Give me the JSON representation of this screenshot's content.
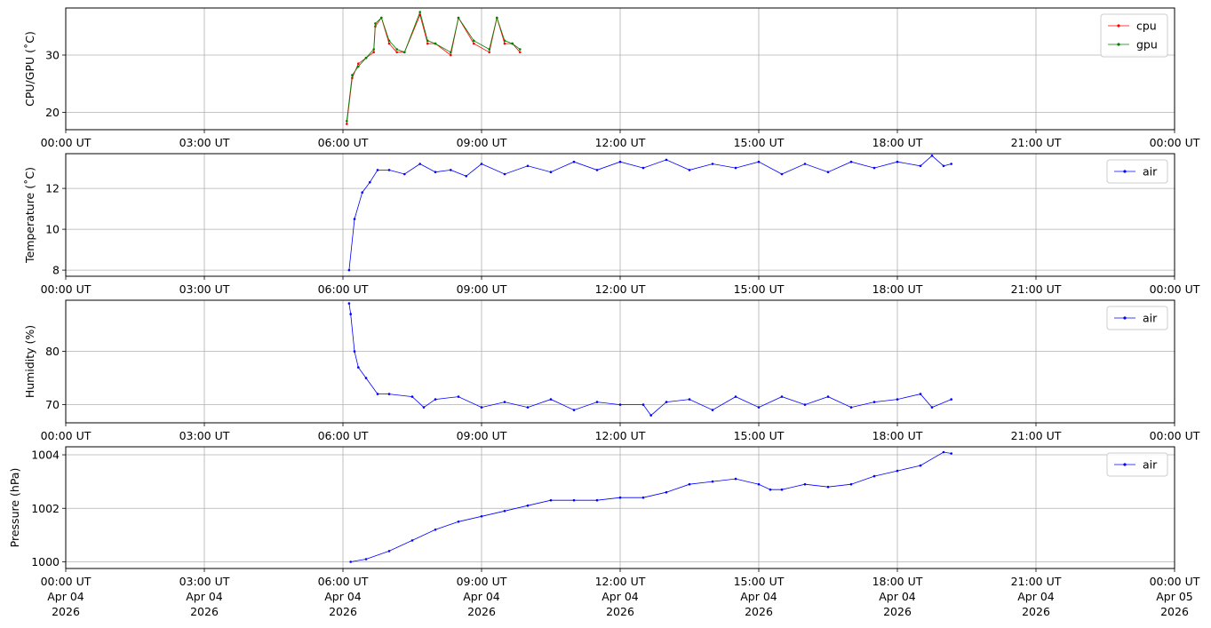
{
  "chart_data": [
    {
      "type": "line",
      "ylabel": "CPU/GPU (˚C)",
      "xlim": [
        "2026-04-04 00:00",
        "2026-04-05 00:00"
      ],
      "ylim": [
        17,
        38.2
      ],
      "yticks": [
        20,
        30
      ],
      "grid": true,
      "legend": "top-right",
      "series": [
        {
          "name": "cpu",
          "color": "#ff0000",
          "x": [
            "06:05",
            "06:12",
            "06:20",
            "06:30",
            "06:40",
            "06:42",
            "06:50",
            "07:00",
            "07:10",
            "07:20",
            "07:40",
            "07:50",
            "08:00",
            "08:20",
            "08:30",
            "08:50",
            "09:10",
            "09:20",
            "09:30",
            "09:40",
            "09:50"
          ],
          "y": [
            18.0,
            26.0,
            28.5,
            29.5,
            30.5,
            35.0,
            36.5,
            32.0,
            30.5,
            30.5,
            37.0,
            32.0,
            32.0,
            30.0,
            36.5,
            32.0,
            30.5,
            36.5,
            32.0,
            32.0,
            30.5
          ]
        },
        {
          "name": "gpu",
          "color": "#008000",
          "x": [
            "06:05",
            "06:12",
            "06:20",
            "06:30",
            "06:40",
            "06:42",
            "06:50",
            "07:00",
            "07:10",
            "07:20",
            "07:40",
            "07:50",
            "08:00",
            "08:20",
            "08:30",
            "08:50",
            "09:10",
            "09:20",
            "09:30",
            "09:40",
            "09:50"
          ],
          "y": [
            18.5,
            26.5,
            28.0,
            29.5,
            31.0,
            35.5,
            36.5,
            32.5,
            31.0,
            30.5,
            37.5,
            32.5,
            32.0,
            30.5,
            36.5,
            32.5,
            31.0,
            36.5,
            32.5,
            32.0,
            31.0
          ]
        }
      ]
    },
    {
      "type": "line",
      "ylabel": "Temperature (˚C)",
      "xlim": [
        "2026-04-04 00:00",
        "2026-04-05 00:00"
      ],
      "ylim": [
        7.7,
        13.7
      ],
      "yticks": [
        8,
        10,
        12
      ],
      "grid": true,
      "legend": "top-right",
      "series": [
        {
          "name": "air",
          "color": "#0000ff",
          "x": [
            "06:08",
            "06:15",
            "06:25",
            "06:35",
            "06:45",
            "07:00",
            "07:20",
            "07:40",
            "08:00",
            "08:20",
            "08:40",
            "09:00",
            "09:30",
            "10:00",
            "10:30",
            "11:00",
            "11:30",
            "12:00",
            "12:30",
            "13:00",
            "13:30",
            "14:00",
            "14:30",
            "15:00",
            "15:30",
            "16:00",
            "16:30",
            "17:00",
            "17:30",
            "18:00",
            "18:30",
            "18:45",
            "19:00",
            "19:10"
          ],
          "y": [
            8.0,
            10.5,
            11.8,
            12.3,
            12.9,
            12.9,
            12.7,
            13.2,
            12.8,
            12.9,
            12.6,
            13.2,
            12.7,
            13.1,
            12.8,
            13.3,
            12.9,
            13.3,
            13.0,
            13.4,
            12.9,
            13.2,
            13.0,
            13.3,
            12.7,
            13.2,
            12.8,
            13.3,
            13.0,
            13.3,
            13.1,
            13.6,
            13.1,
            13.2
          ]
        }
      ]
    },
    {
      "type": "line",
      "ylabel": "Humidity (%)",
      "xlim": [
        "2026-04-04 00:00",
        "2026-04-05 00:00"
      ],
      "ylim": [
        66.6,
        89.6
      ],
      "yticks": [
        70,
        80
      ],
      "grid": true,
      "legend": "top-right",
      "series": [
        {
          "name": "air",
          "color": "#0000ff",
          "x": [
            "06:08",
            "06:10",
            "06:15",
            "06:20",
            "06:30",
            "06:45",
            "07:00",
            "07:30",
            "07:45",
            "08:00",
            "08:30",
            "09:00",
            "09:30",
            "10:00",
            "10:30",
            "11:00",
            "11:30",
            "12:00",
            "12:30",
            "12:40",
            "13:00",
            "13:30",
            "14:00",
            "14:30",
            "15:00",
            "15:30",
            "16:00",
            "16:30",
            "17:00",
            "17:30",
            "18:00",
            "18:30",
            "18:45",
            "19:10"
          ],
          "y": [
            89.0,
            87.0,
            80.0,
            77.0,
            75.0,
            72.0,
            72.0,
            71.5,
            69.5,
            71.0,
            71.5,
            69.5,
            70.5,
            69.5,
            71.0,
            69.0,
            70.5,
            70.0,
            70.0,
            68.0,
            70.5,
            71.0,
            69.0,
            71.5,
            69.5,
            71.5,
            70.0,
            71.5,
            69.5,
            70.5,
            71.0,
            72.0,
            69.5,
            71.0
          ]
        }
      ]
    },
    {
      "type": "line",
      "ylabel": "Pressure (hPa)",
      "xlim": [
        "2026-04-04 00:00",
        "2026-04-05 00:00"
      ],
      "ylim": [
        999.75,
        1004.3
      ],
      "yticks": [
        1000,
        1002,
        1004
      ],
      "grid": true,
      "legend": "top-right",
      "series": [
        {
          "name": "air",
          "color": "#0000ff",
          "x": [
            "06:10",
            "06:30",
            "07:00",
            "07:30",
            "08:00",
            "08:30",
            "09:00",
            "09:30",
            "10:00",
            "10:30",
            "11:00",
            "11:30",
            "12:00",
            "12:30",
            "13:00",
            "13:30",
            "14:00",
            "14:30",
            "15:00",
            "15:15",
            "15:30",
            "16:00",
            "16:30",
            "17:00",
            "17:30",
            "18:00",
            "18:30",
            "19:00",
            "19:10"
          ],
          "y": [
            1000.0,
            1000.1,
            1000.4,
            1000.8,
            1001.2,
            1001.5,
            1001.7,
            1001.9,
            1002.1,
            1002.3,
            1002.3,
            1002.3,
            1002.4,
            1002.4,
            1002.6,
            1002.9,
            1003.0,
            1003.1,
            1002.9,
            1002.7,
            1002.7,
            1002.9,
            1002.8,
            1002.9,
            1003.2,
            1003.4,
            1003.6,
            1004.1,
            1004.05
          ]
        }
      ]
    }
  ],
  "x_tick_labels": [
    "00:00 UT",
    "03:00 UT",
    "06:00 UT",
    "09:00 UT",
    "12:00 UT",
    "15:00 UT",
    "18:00 UT",
    "21:00 UT",
    "00:00 UT"
  ],
  "x_tick_dates": [
    "Apr 04",
    "Apr 04",
    "Apr 04",
    "Apr 04",
    "Apr 04",
    "Apr 04",
    "Apr 04",
    "Apr 04",
    "Apr 05"
  ],
  "x_tick_year": "2026"
}
